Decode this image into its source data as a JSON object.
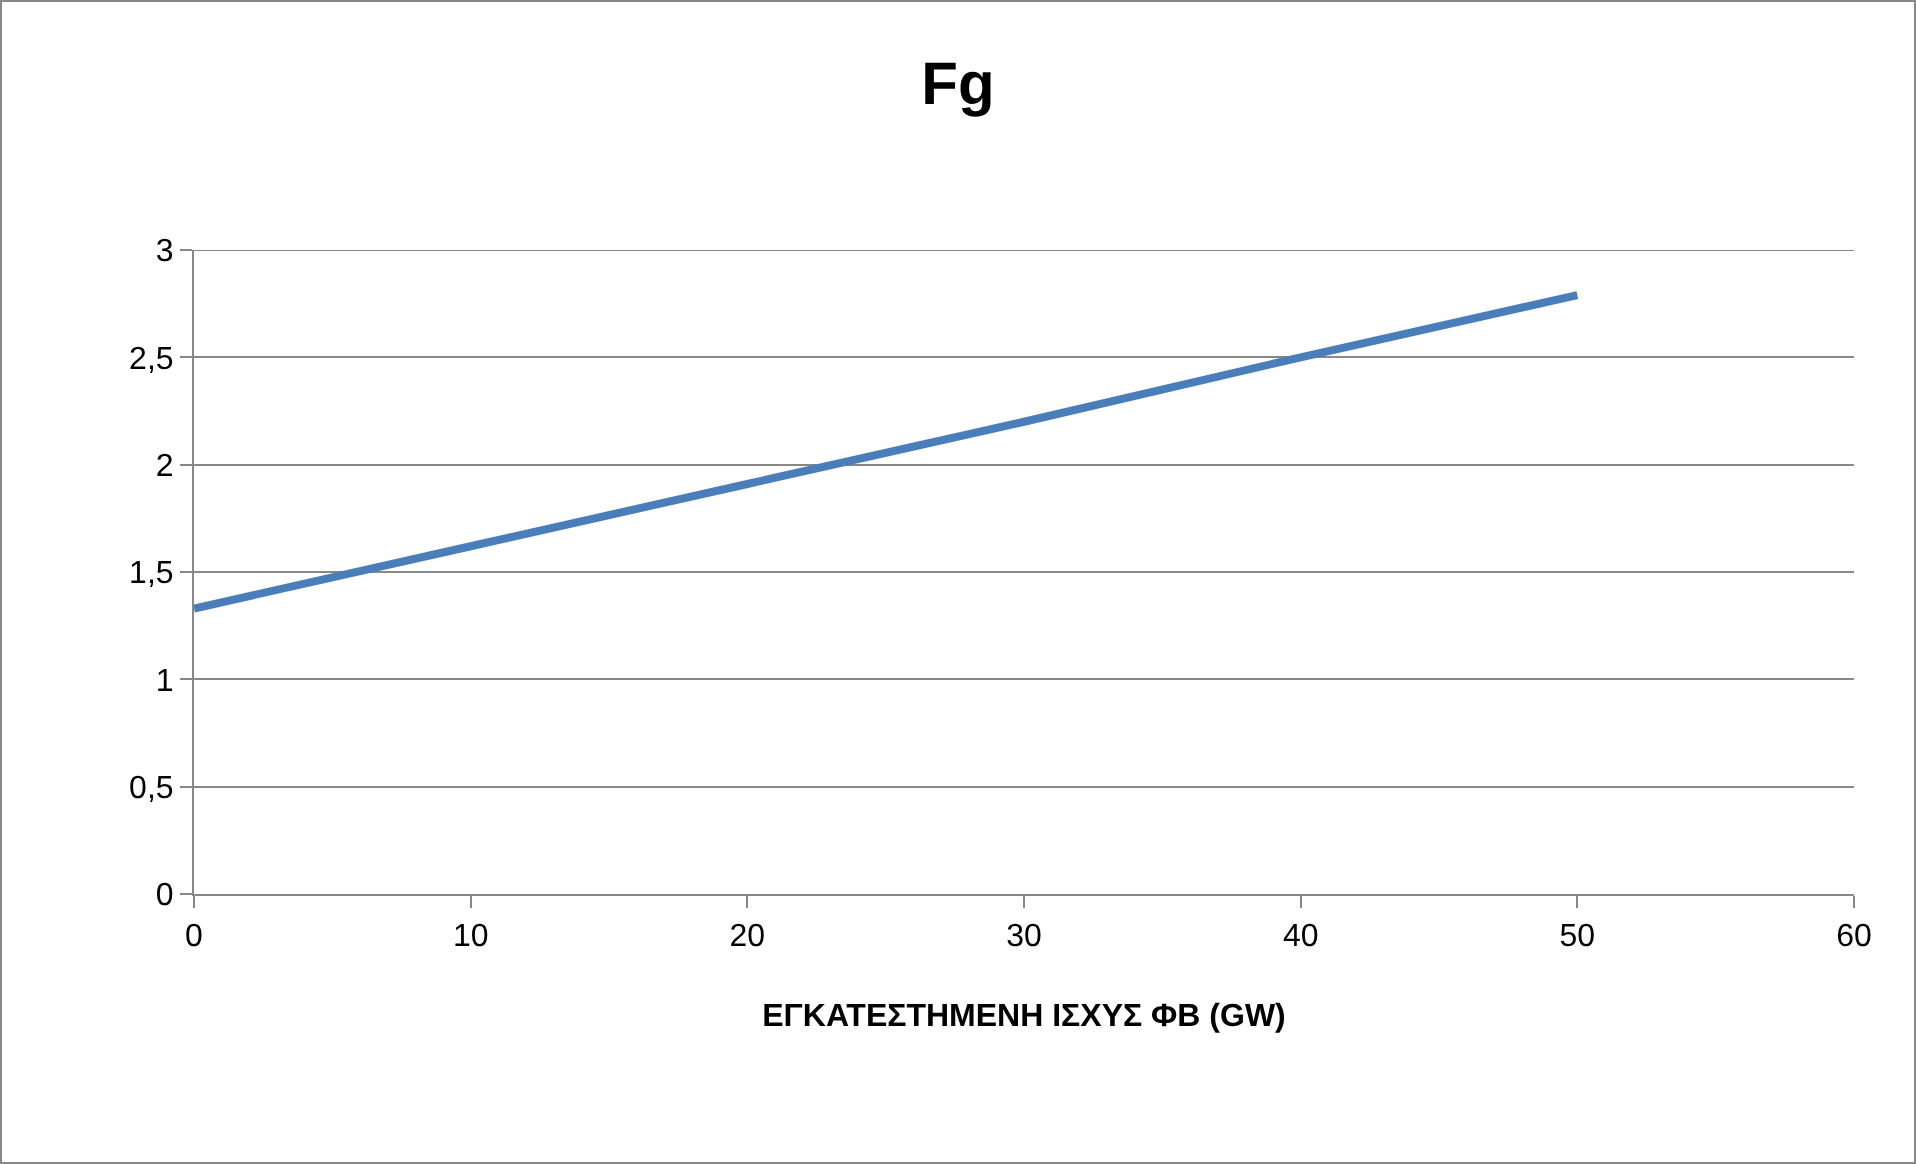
{
  "chart_data": {
    "type": "line",
    "title": "Fg",
    "xlabel": "ΕΓΚΑΤΕΣΤΗΜΕΝΗ ΙΣΧΥΣ ΦΒ (GW)",
    "x": [
      0,
      10,
      20,
      30,
      40,
      50
    ],
    "series": [
      {
        "color": "#4a7ebb",
        "values": [
          1.33,
          1.62,
          1.91,
          2.2,
          2.5,
          2.79
        ]
      }
    ],
    "xlim": [
      0,
      60
    ],
    "xticks": [
      0,
      10,
      20,
      30,
      40,
      50,
      60
    ],
    "ylim": [
      0,
      3
    ],
    "yticks": [
      0,
      {
        "value": 0.5,
        "label": "0,5"
      },
      1,
      {
        "value": 1.5,
        "label": "1,5"
      },
      2,
      {
        "value": 2.5,
        "label": "2,5"
      },
      3
    ],
    "grid": "y",
    "marker": "none",
    "line_style": "solid"
  }
}
